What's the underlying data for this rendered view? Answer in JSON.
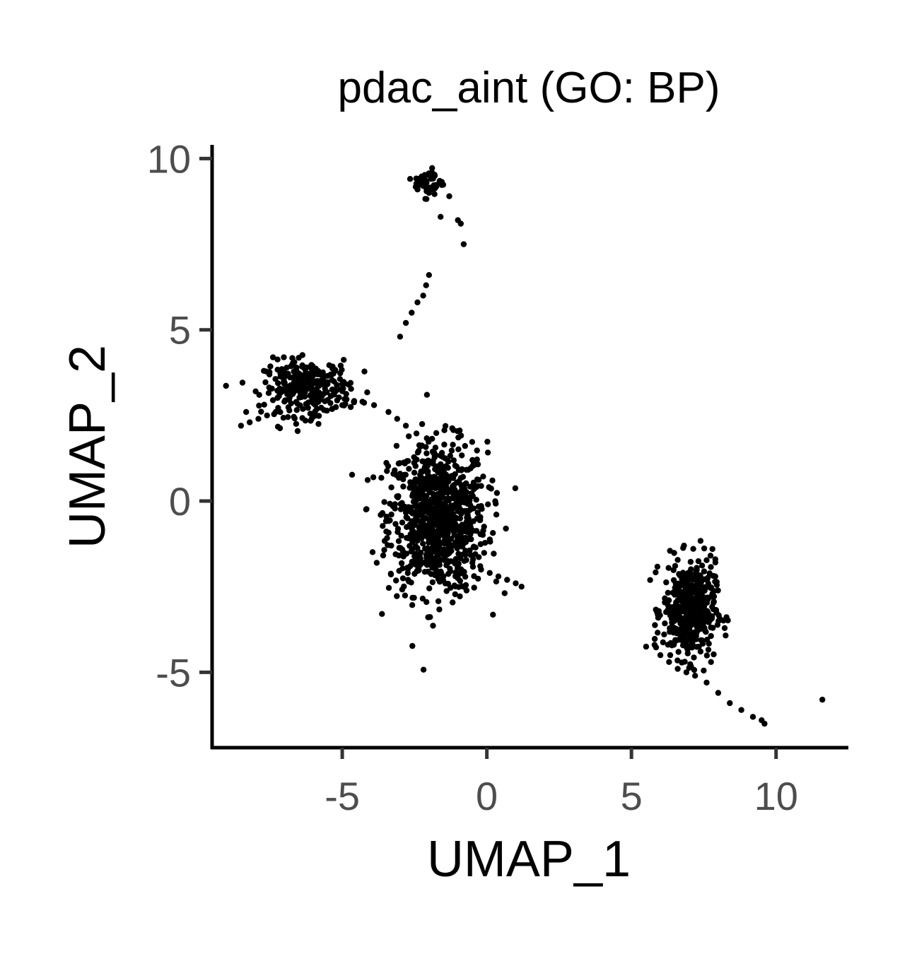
{
  "chart_data": {
    "type": "scatter",
    "title": "pdac_aint (GO: BP)",
    "xlabel": "UMAP_1",
    "ylabel": "UMAP_2",
    "xlim": [
      -9.5,
      12.5
    ],
    "ylim": [
      -7.2,
      10.4
    ],
    "xticks": [
      -5,
      0,
      5,
      10
    ],
    "yticks": [
      -5,
      0,
      5,
      10
    ],
    "xtick_labels": [
      "-5",
      "0",
      "5",
      "10"
    ],
    "ytick_labels": [
      "-5",
      "0",
      "5",
      "10"
    ],
    "grid": false,
    "legend": "none",
    "point_color": "#000000",
    "clusters": [
      {
        "cx": -1.7,
        "cy": -0.5,
        "sx": 0.85,
        "sy": 1.1,
        "n": 900
      },
      {
        "cx": -6.2,
        "cy": 3.3,
        "sx": 0.75,
        "sy": 0.4,
        "n": 300
      },
      {
        "cx": 7.0,
        "cy": -3.2,
        "sx": 0.45,
        "sy": 0.7,
        "n": 450
      },
      {
        "cx": -2.0,
        "cy": 9.3,
        "sx": 0.25,
        "sy": 0.2,
        "n": 45
      }
    ],
    "x": [
      -8.5,
      -8.2,
      -7.9,
      -7.6,
      -7.3,
      -5.0,
      -4.6,
      -4.3,
      -3.9,
      -3.4,
      -3.1,
      -2.8,
      -3.0,
      -2.8,
      -2.6,
      -2.4,
      -2.2,
      -2.1,
      -2.0,
      -1.6,
      -1.3,
      -1.0,
      -0.9,
      -0.8,
      -1.9,
      -1.8,
      -2.2,
      -2.0,
      -3.0,
      -3.3,
      -0.5,
      -0.2,
      0.1,
      0.4,
      0.7,
      1.0,
      1.2,
      5.8,
      6.0,
      6.3,
      6.6,
      6.9,
      7.2,
      7.6,
      8.0,
      8.4,
      8.8,
      9.2,
      9.5,
      9.6,
      11.6,
      7.8,
      7.9,
      7.9,
      7.8
    ],
    "y": [
      2.2,
      2.3,
      2.4,
      2.5,
      2.6,
      2.8,
      2.9,
      2.9,
      2.8,
      2.6,
      2.4,
      2.2,
      4.8,
      5.2,
      5.5,
      5.8,
      6.0,
      6.3,
      6.6,
      8.3,
      8.9,
      8.2,
      8.1,
      7.5,
      9.6,
      9.5,
      9.2,
      9.0,
      0.8,
      0.4,
      -1.8,
      -2.0,
      -2.1,
      -2.2,
      -2.3,
      -2.4,
      -2.5,
      -4.2,
      -4.5,
      -4.7,
      -4.9,
      -5.0,
      -5.1,
      -5.3,
      -5.6,
      -5.9,
      -6.1,
      -6.3,
      -6.4,
      -6.5,
      -5.8,
      -1.4,
      -1.7,
      -2.2,
      -2.7
    ]
  }
}
